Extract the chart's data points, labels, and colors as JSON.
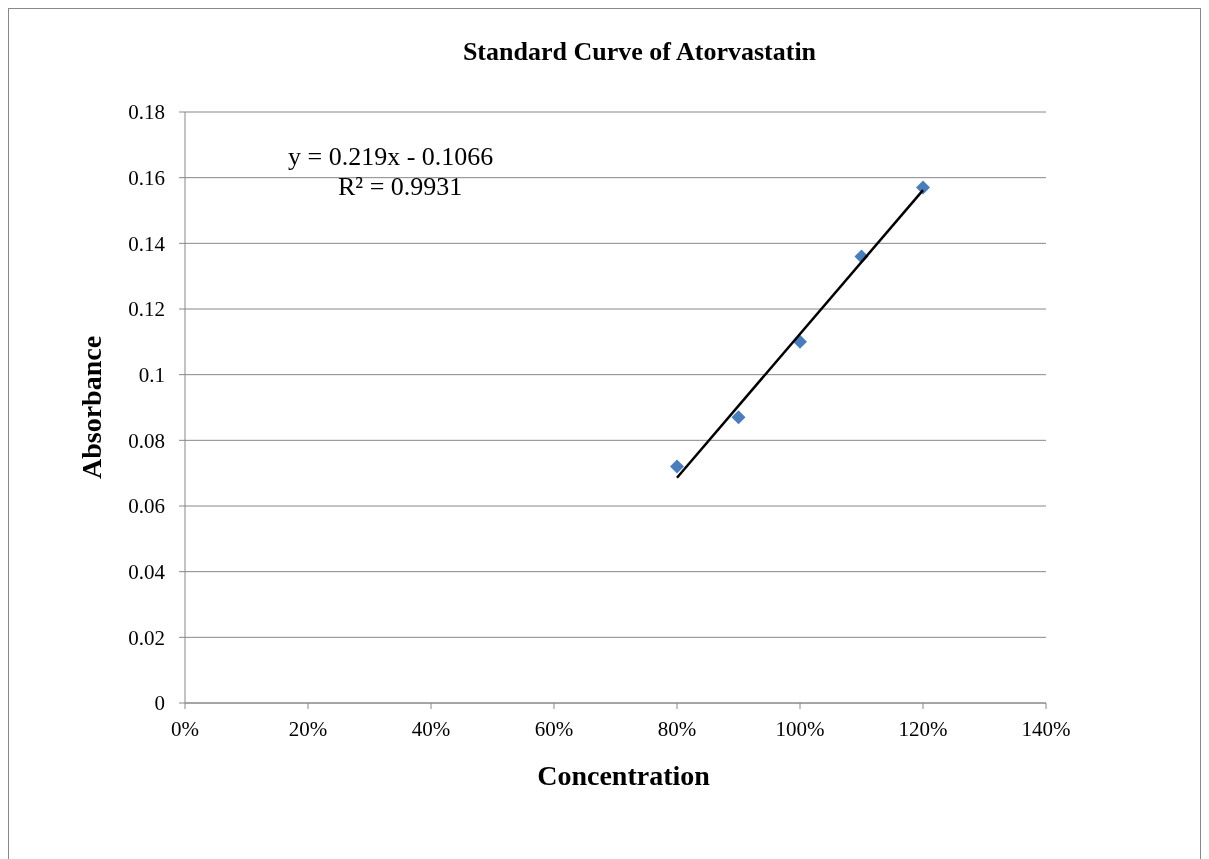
{
  "chart_data": {
    "type": "scatter",
    "title": "Standard Curve of Atorvastatin",
    "xlabel": "Concentration",
    "ylabel": "Absorbance",
    "annotations": [
      "y = 0.219x - 0.1066",
      "R² = 0.9931"
    ],
    "xlim": [
      0,
      1.4
    ],
    "xticks": [
      {
        "value": 0,
        "label": "0%"
      },
      {
        "value": 0.2,
        "label": "20%"
      },
      {
        "value": 0.4,
        "label": "40%"
      },
      {
        "value": 0.6,
        "label": "60%"
      },
      {
        "value": 0.8,
        "label": "80%"
      },
      {
        "value": 1.0,
        "label": "100%"
      },
      {
        "value": 1.2,
        "label": "120%"
      },
      {
        "value": 1.4,
        "label": "140%"
      }
    ],
    "ylim": [
      0,
      0.18
    ],
    "yticks": [
      0,
      0.02,
      0.04,
      0.06,
      0.08,
      0.1,
      0.12,
      0.14,
      0.16,
      0.18
    ],
    "grid": "y",
    "marker": "diamond",
    "series": [
      {
        "color": "#4a7ebb",
        "x": [
          0.8,
          0.9,
          1.0,
          1.1,
          1.2
        ],
        "values": [
          0.072,
          0.087,
          0.11,
          0.136,
          0.157
        ]
      },
      {
        "type": "line",
        "color": "#000000",
        "marker": "none",
        "line_style": "solid",
        "x": [
          0.8,
          1.2
        ],
        "values": [
          0.0686,
          0.1562
        ]
      }
    ]
  }
}
